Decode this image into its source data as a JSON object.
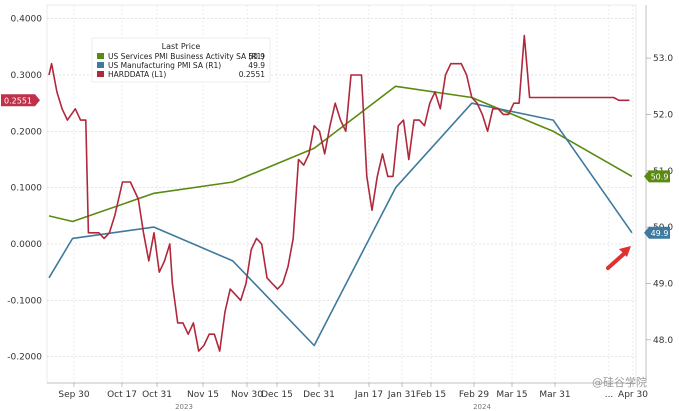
{
  "chart_data": {
    "type": "line",
    "legend": {
      "title": "Last Price",
      "position": "top-left",
      "entries": [
        {
          "label": "US Services PMI Business Activity SA  (R1)",
          "value": "50.9",
          "color": "#5a8a10"
        },
        {
          "label": "US Manufacturing PMI SA  (R1)",
          "value": "49.9",
          "color": "#3e7a9e"
        },
        {
          "label": "HARDDATA  (L1)",
          "value": "0.2551",
          "color": "#b0283c"
        }
      ]
    },
    "x_ticks": [
      "Sep 30",
      "Oct 17",
      "Oct 31",
      "Nov 15",
      "Nov 30",
      "Dec 15",
      "Dec 31",
      "Jan 17",
      "Jan 31",
      "Feb 15",
      "Feb 29",
      "Mar 15",
      "Mar 31",
      "...",
      "Apr 30"
    ],
    "x_years": [
      "2023",
      "2024"
    ],
    "left_axis": {
      "ylim": [
        -0.22,
        0.41
      ],
      "ticks": [
        "0.4000",
        "0.3000",
        "0.2000",
        "0.1000",
        "0.0000",
        "-0.1000",
        "-0.2000"
      ],
      "tick_values": [
        0.4,
        0.3,
        0.2,
        0.1,
        0.0,
        -0.1,
        -0.2
      ]
    },
    "right_axis": {
      "ylim": [
        47.8,
        53.55
      ],
      "ticks": [
        "53.0",
        "52.0",
        "51.0",
        "50.0",
        "49.0",
        "48.0"
      ],
      "tick_values": [
        53.0,
        52.0,
        51.0,
        50.0,
        49.0,
        48.0
      ]
    },
    "value_tags": {
      "harddata": "0.2551",
      "services": "50.9",
      "manufacturing": "49.9"
    },
    "series": [
      {
        "name": "US Services PMI Business Activity SA",
        "axis": "right",
        "color": "#5a8a10",
        "x": [
          "2023-09-21",
          "2023-09-30",
          "2023-10-31",
          "2023-11-30",
          "2023-12-31",
          "2024-01-31",
          "2024-02-29",
          "2024-03-31",
          "2024-04-30"
        ],
        "values": [
          50.2,
          50.1,
          50.6,
          50.8,
          51.4,
          52.5,
          52.3,
          51.7,
          50.9
        ]
      },
      {
        "name": "US Manufacturing PMI SA",
        "axis": "right",
        "color": "#3e7a9e",
        "x": [
          "2023-09-21",
          "2023-09-30",
          "2023-10-31",
          "2023-11-30",
          "2023-12-31",
          "2024-01-31",
          "2024-02-29",
          "2024-03-31",
          "2024-04-30"
        ],
        "values": [
          49.1,
          49.8,
          50.0,
          49.4,
          47.9,
          50.7,
          52.2,
          51.9,
          49.9
        ]
      },
      {
        "name": "HARDDATA",
        "axis": "left",
        "color": "#b0283c",
        "x": [
          "2023-09-21",
          "2023-09-22",
          "2023-09-24",
          "2023-09-26",
          "2023-09-28",
          "2023-10-01",
          "2023-10-03",
          "2023-10-05",
          "2023-10-06",
          "2023-10-08",
          "2023-10-10",
          "2023-10-12",
          "2023-10-14",
          "2023-10-16",
          "2023-10-19",
          "2023-10-22",
          "2023-10-25",
          "2023-10-27",
          "2023-10-29",
          "2023-10-31",
          "2023-11-02",
          "2023-11-04",
          "2023-11-06",
          "2023-11-07",
          "2023-11-09",
          "2023-11-11",
          "2023-11-13",
          "2023-11-15",
          "2023-11-17",
          "2023-11-19",
          "2023-11-21",
          "2023-11-23",
          "2023-11-25",
          "2023-11-27",
          "2023-11-29",
          "2023-12-01",
          "2023-12-03",
          "2023-12-05",
          "2023-12-07",
          "2023-12-09",
          "2023-12-11",
          "2023-12-13",
          "2023-12-15",
          "2023-12-17",
          "2023-12-19",
          "2023-12-21",
          "2023-12-23",
          "2023-12-25",
          "2023-12-27",
          "2023-12-29",
          "2023-12-31",
          "2024-01-02",
          "2024-01-04",
          "2024-01-06",
          "2024-01-08",
          "2024-01-10",
          "2024-01-12",
          "2024-01-14",
          "2024-01-16",
          "2024-01-18",
          "2024-01-20",
          "2024-01-22",
          "2024-01-24",
          "2024-01-26",
          "2024-01-28",
          "2024-01-30",
          "2024-02-01",
          "2024-02-03",
          "2024-02-05",
          "2024-02-07",
          "2024-02-09",
          "2024-02-11",
          "2024-02-13",
          "2024-02-15",
          "2024-02-17",
          "2024-02-19",
          "2024-02-21",
          "2024-02-23",
          "2024-02-25",
          "2024-02-27",
          "2024-02-29",
          "2024-03-02",
          "2024-03-04",
          "2024-03-06",
          "2024-03-08",
          "2024-03-10",
          "2024-03-12",
          "2024-03-14",
          "2024-03-16",
          "2024-03-18",
          "2024-03-20",
          "2024-03-22",
          "2024-03-24",
          "2024-03-26",
          "2024-03-28",
          "2024-03-30",
          "2024-04-01",
          "2024-04-03",
          "2024-04-05",
          "2024-04-07",
          "2024-04-09",
          "2024-04-11",
          "2024-04-13",
          "2024-04-15",
          "2024-04-17",
          "2024-04-19",
          "2024-04-21",
          "2024-04-23",
          "2024-04-25",
          "2024-04-27",
          "2024-04-29"
        ],
        "values": [
          0.3,
          0.32,
          0.27,
          0.24,
          0.22,
          0.24,
          0.22,
          0.22,
          0.02,
          0.02,
          0.02,
          0.01,
          0.02,
          0.05,
          0.11,
          0.11,
          0.08,
          0.02,
          -0.03,
          0.02,
          -0.05,
          -0.03,
          0.0,
          -0.07,
          -0.14,
          -0.14,
          -0.16,
          -0.14,
          -0.19,
          -0.18,
          -0.16,
          -0.16,
          -0.19,
          -0.12,
          -0.08,
          -0.09,
          -0.1,
          -0.07,
          -0.01,
          0.01,
          0.0,
          -0.06,
          -0.07,
          -0.08,
          -0.07,
          -0.04,
          0.01,
          0.15,
          0.14,
          0.16,
          0.21,
          0.2,
          0.16,
          0.21,
          0.25,
          0.22,
          0.2,
          0.3,
          0.3,
          0.3,
          0.12,
          0.06,
          0.12,
          0.16,
          0.12,
          0.12,
          0.21,
          0.22,
          0.15,
          0.22,
          0.22,
          0.21,
          0.25,
          0.27,
          0.24,
          0.3,
          0.32,
          0.32,
          0.32,
          0.3,
          0.26,
          0.25,
          0.23,
          0.2,
          0.24,
          0.24,
          0.23,
          0.23,
          0.25,
          0.25,
          0.37,
          0.26,
          0.26,
          0.26,
          0.26,
          0.26,
          0.26,
          0.26,
          0.26,
          0.26,
          0.26,
          0.26,
          0.26,
          0.26,
          0.26,
          0.26,
          0.26,
          0.26,
          0.2551,
          0.2551,
          0.2551
        ],
        "points": [
          [
            49,
            0.31
          ],
          [
            52,
            0.32
          ],
          [
            58,
            0.27
          ],
          [
            66,
            0.24
          ],
          [
            73,
            0.22
          ],
          [
            80,
            0.245
          ],
          [
            87,
            0.22
          ],
          [
            95,
            0.22
          ],
          [
            99,
            0.02
          ],
          [
            105,
            0.02
          ],
          [
            113,
            0.015
          ],
          [
            120,
            0.01
          ],
          [
            127,
            0.02
          ],
          [
            133,
            0.05
          ],
          [
            143,
            0.11
          ],
          [
            150,
            0.11
          ],
          [
            157,
            0.08
          ],
          [
            163,
            0.02
          ],
          [
            170,
            -0.03
          ],
          [
            176,
            0.02
          ],
          [
            181,
            -0.045
          ],
          [
            185,
            -0.03
          ],
          [
            191,
            0.0
          ],
          [
            199,
            -0.07
          ],
          [
            206,
            -0.135
          ],
          [
            212,
            -0.14
          ],
          [
            218,
            -0.165
          ],
          [
            224,
            -0.145
          ],
          [
            230,
            -0.19
          ],
          [
            236,
            -0.175
          ],
          [
            241,
            -0.15
          ],
          [
            246,
            -0.15
          ],
          [
            251,
            -0.185
          ],
          [
            258,
            -0.12
          ],
          [
            263,
            -0.08
          ],
          [
            269,
            -0.09
          ],
          [
            275,
            -0.1
          ],
          [
            281,
            -0.07
          ],
          [
            286,
            -0.01
          ],
          [
            291,
            0.01
          ],
          [
            296,
            0.0
          ],
          [
            301,
            -0.06
          ],
          [
            307,
            -0.07
          ],
          [
            313,
            -0.08
          ],
          [
            319,
            -0.075
          ],
          [
            326,
            -0.04
          ],
          [
            334,
            0.01
          ],
          [
            345,
            0.145
          ],
          [
            352,
            0.14
          ],
          [
            359,
            0.16
          ],
          [
            365,
            0.205
          ],
          [
            371,
            0.2
          ],
          [
            378,
            0.16
          ],
          [
            384,
            0.205
          ],
          [
            391,
            0.25
          ],
          [
            397,
            0.215
          ],
          [
            402,
            0.2
          ],
          [
            408,
            0.3
          ],
          [
            415,
            0.3
          ],
          [
            421,
            0.3
          ],
          [
            428,
            0.12
          ],
          [
            435,
            0.065
          ],
          [
            441,
            0.12
          ],
          [
            447,
            0.16
          ],
          [
            453,
            0.12
          ],
          [
            459,
            0.12
          ],
          [
            465,
            0.21
          ],
          [
            470,
            0.22
          ],
          [
            475,
            0.15
          ],
          [
            481,
            0.22
          ],
          [
            487,
            0.22
          ],
          [
            492,
            0.21
          ],
          [
            497,
            0.245
          ],
          [
            504,
            0.27
          ],
          [
            510,
            0.24
          ],
          [
            517,
            0.3
          ],
          [
            524,
            0.315
          ],
          [
            531,
            0.32
          ],
          [
            537,
            0.32
          ],
          [
            543,
            0.3
          ],
          [
            549,
            0.26
          ],
          [
            555,
            0.25
          ],
          [
            561,
            0.23
          ],
          [
            567,
            0.2
          ],
          [
            573,
            0.24
          ],
          [
            579,
            0.24
          ],
          [
            585,
            0.23
          ],
          [
            591,
            0.23
          ],
          [
            597,
            0.25
          ],
          [
            603,
            0.25
          ],
          [
            608,
            0.365
          ],
          [
            612,
            0.26
          ],
          [
            614,
            0.255
          ],
          [
            622,
            0.255
          ]
        ]
      }
    ]
  },
  "watermark": "@硅谷学院"
}
